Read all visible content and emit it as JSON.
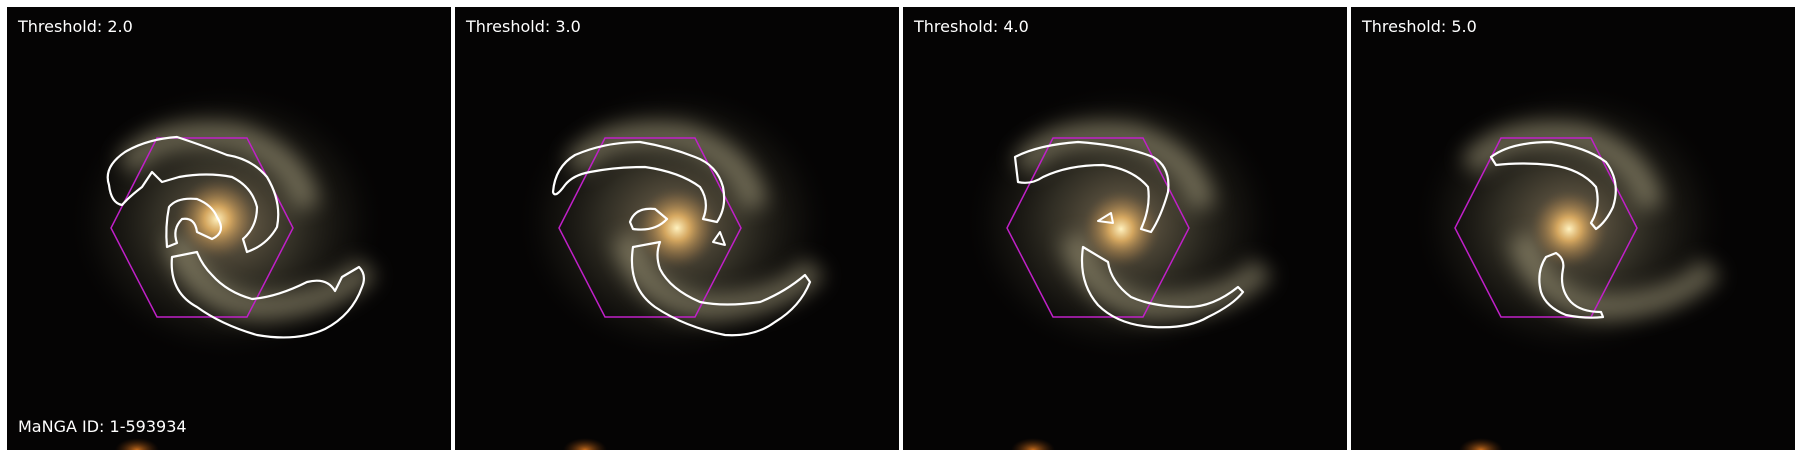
{
  "panels": [
    {
      "threshold_label": "Threshold: 2.0"
    },
    {
      "threshold_label": "Threshold: 3.0"
    },
    {
      "threshold_label": "Threshold: 4.0"
    },
    {
      "threshold_label": "Threshold: 5.0"
    }
  ],
  "manga_id_label": "MaNGA ID: 1-593934",
  "colors": {
    "background": "#050404",
    "contour": "#ffffff",
    "hexagon": "#c020c8",
    "galaxy_core": "#ffe0a0"
  }
}
